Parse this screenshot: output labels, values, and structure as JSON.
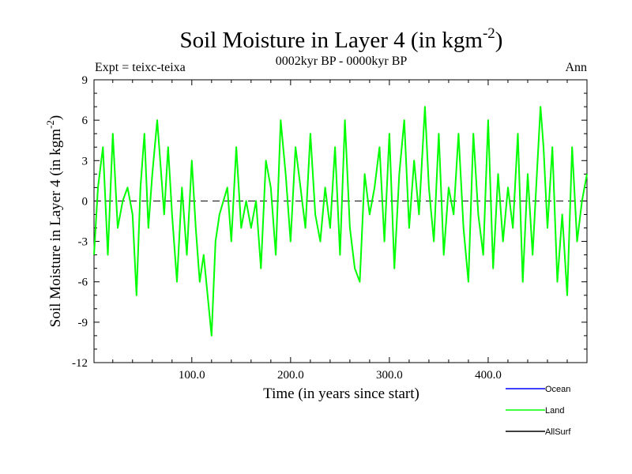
{
  "chart_data": {
    "type": "line",
    "title_main": "Soil Moisture in Layer 4 (in kgm",
    "title_sup": "-2",
    "title_close": ")",
    "subtitle": "0002kyr BP - 0000kyr BP",
    "left_label": "Expt = teixc-teixa",
    "right_label": "Ann",
    "xlabel": "Time (in years since start)",
    "ylabel_main": "Soil Moisture in Layer 4 (in kgm",
    "ylabel_sup": "-2",
    "ylabel_close": ")",
    "xlim": [
      1,
      500
    ],
    "ylim": [
      -12,
      9
    ],
    "x_ticks": [
      100,
      200,
      300,
      400
    ],
    "x_tick_labels": [
      "100.0",
      "200.0",
      "300.0",
      "400.0"
    ],
    "y_ticks": [
      9,
      6,
      3,
      0,
      -3,
      -6,
      -9,
      -12
    ],
    "y_tick_labels": [
      "9",
      "6",
      "3",
      "0",
      "-3",
      "-6",
      "-9",
      "-12"
    ],
    "zero_line": 0,
    "series": [
      {
        "name": "Ocean",
        "color": "#0000ff",
        "values": []
      },
      {
        "name": "Land",
        "color": "#00ff00",
        "x": [
          1,
          5,
          10,
          15,
          20,
          25,
          30,
          35,
          40,
          44,
          48,
          52,
          56,
          60,
          65,
          68,
          72,
          76,
          80,
          85,
          90,
          95,
          100,
          104,
          108,
          112,
          116,
          120,
          124,
          128,
          132,
          136,
          140,
          145,
          150,
          155,
          160,
          165,
          170,
          175,
          180,
          185,
          190,
          195,
          200,
          205,
          210,
          215,
          220,
          225,
          230,
          235,
          240,
          245,
          250,
          255,
          260,
          265,
          270,
          275,
          280,
          285,
          290,
          295,
          300,
          305,
          310,
          315,
          320,
          325,
          330,
          336,
          340,
          345,
          350,
          355,
          360,
          365,
          370,
          375,
          380,
          385,
          390,
          395,
          400,
          405,
          410,
          415,
          420,
          425,
          430,
          435,
          440,
          445,
          450,
          453,
          456,
          460,
          465,
          470,
          475,
          480,
          485,
          490,
          495,
          500
        ],
        "values": [
          -4,
          1,
          4,
          -4,
          5,
          -2,
          0,
          1,
          -1,
          -7,
          1,
          5,
          -2,
          2,
          6,
          3,
          -1,
          4,
          -1,
          -6,
          1,
          -4,
          3,
          -2,
          -6,
          -4,
          -7,
          -10,
          -3,
          -1,
          0,
          1,
          -3,
          4,
          -2,
          0,
          -2,
          0,
          -5,
          3,
          1,
          -4,
          6,
          2,
          -3,
          4,
          1,
          -2,
          5,
          -1,
          -3,
          1,
          -2,
          4,
          -4,
          6,
          -2,
          -5,
          -6,
          2,
          -1,
          1,
          4,
          -3,
          5,
          -5,
          2,
          6,
          -2,
          3,
          -1,
          7,
          1,
          -3,
          5,
          -4,
          1,
          -1,
          5,
          -2,
          -6,
          5,
          -1,
          -4,
          6,
          -5,
          2,
          -3,
          1,
          -2,
          5,
          -6,
          2,
          -4,
          3,
          7,
          4,
          -2,
          4,
          -6,
          -1,
          -7,
          4,
          -3,
          0,
          2
        ]
      },
      {
        "name": "AllSurf",
        "color": "#000000",
        "values": []
      }
    ],
    "legend_position": "bottom-right"
  }
}
